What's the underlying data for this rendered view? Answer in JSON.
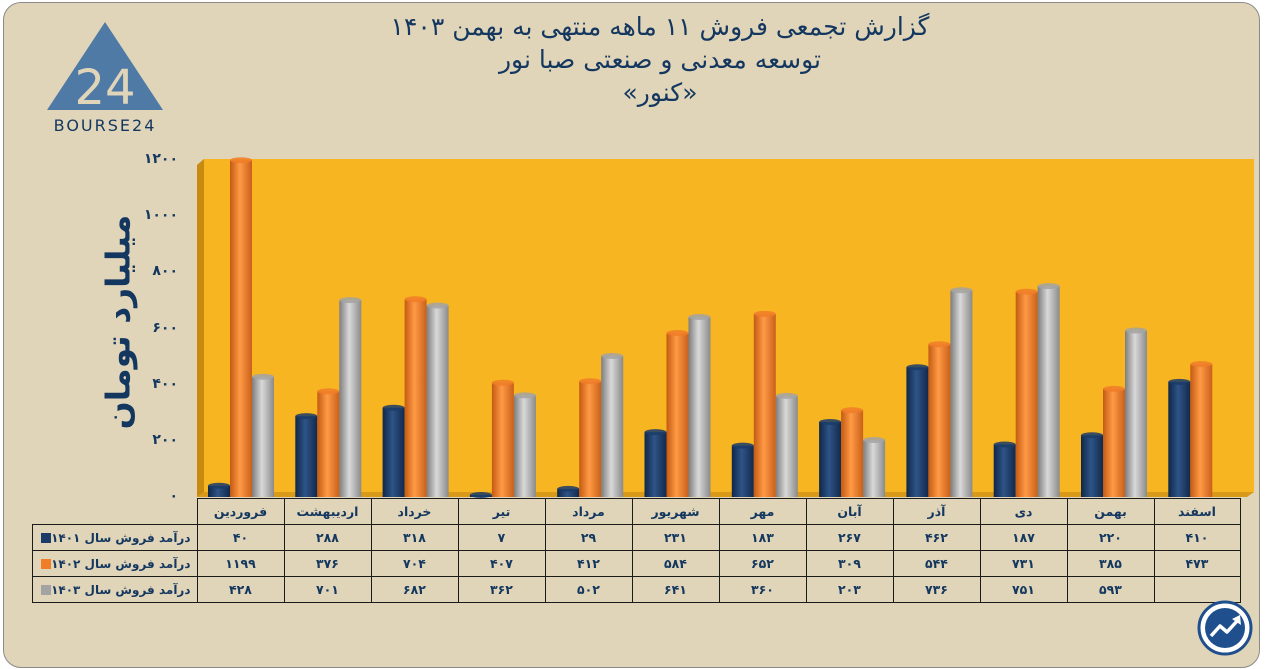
{
  "title_lines": [
    "گزارش تجمعی فروش ۱۱ ماهه منتهی به بهمن ۱۴۰۳",
    "توسعه معدنی و صنعتی صبا نور",
    "«کنور»"
  ],
  "logo": {
    "text": "BOURSE24",
    "mark": "24"
  },
  "chart_data": {
    "type": "bar",
    "ylabel": "میلیارد تومان",
    "ylim": [
      0,
      1200
    ],
    "y_ticks": [
      0,
      200,
      400,
      600,
      800,
      1000,
      1200
    ],
    "y_tick_labels": [
      "۰",
      "۲۰۰",
      "۴۰۰",
      "۶۰۰",
      "۸۰۰",
      "۱۰۰۰",
      "۱۲۰۰"
    ],
    "categories": [
      "فروردین",
      "اردیبهشت",
      "خرداد",
      "تیر",
      "مرداد",
      "شهریور",
      "مهر",
      "آبان",
      "آذر",
      "دی",
      "بهمن",
      "اسفند"
    ],
    "series": [
      {
        "name": "درآمد فروش سال ۱۴۰۱",
        "color": "#1b3c68",
        "values": [
          40,
          288,
          318,
          7,
          29,
          231,
          183,
          267,
          462,
          187,
          220,
          410
        ],
        "labels": [
          "۴۰",
          "۲۸۸",
          "۳۱۸",
          "۷",
          "۲۹",
          "۲۳۱",
          "۱۸۳",
          "۲۶۷",
          "۴۶۲",
          "۱۸۷",
          "۲۲۰",
          "۴۱۰"
        ]
      },
      {
        "name": "درآمد فروش سال ۱۴۰۲",
        "color": "#f07d28",
        "values": [
          1199,
          376,
          704,
          407,
          412,
          584,
          652,
          309,
          544,
          731,
          385,
          473
        ],
        "labels": [
          "۱۱۹۹",
          "۳۷۶",
          "۷۰۴",
          "۴۰۷",
          "۴۱۲",
          "۵۸۴",
          "۶۵۲",
          "۳۰۹",
          "۵۴۴",
          "۷۳۱",
          "۳۸۵",
          "۴۷۳"
        ]
      },
      {
        "name": "درآمد فروش سال ۱۴۰۳",
        "color": "#a3a3a3",
        "values": [
          428,
          701,
          682,
          362,
          502,
          641,
          360,
          203,
          736,
          751,
          593,
          null
        ],
        "labels": [
          "۴۲۸",
          "۷۰۱",
          "۶۸۲",
          "۳۶۲",
          "۵۰۲",
          "۶۴۱",
          "۳۶۰",
          "۲۰۳",
          "۷۳۶",
          "۷۵۱",
          "۵۹۳",
          ""
        ]
      }
    ],
    "plot_background": "#f7b521",
    "page_background": "#e0d5b9",
    "text_color": "#14375f",
    "legend": "table-below",
    "grid": false
  }
}
